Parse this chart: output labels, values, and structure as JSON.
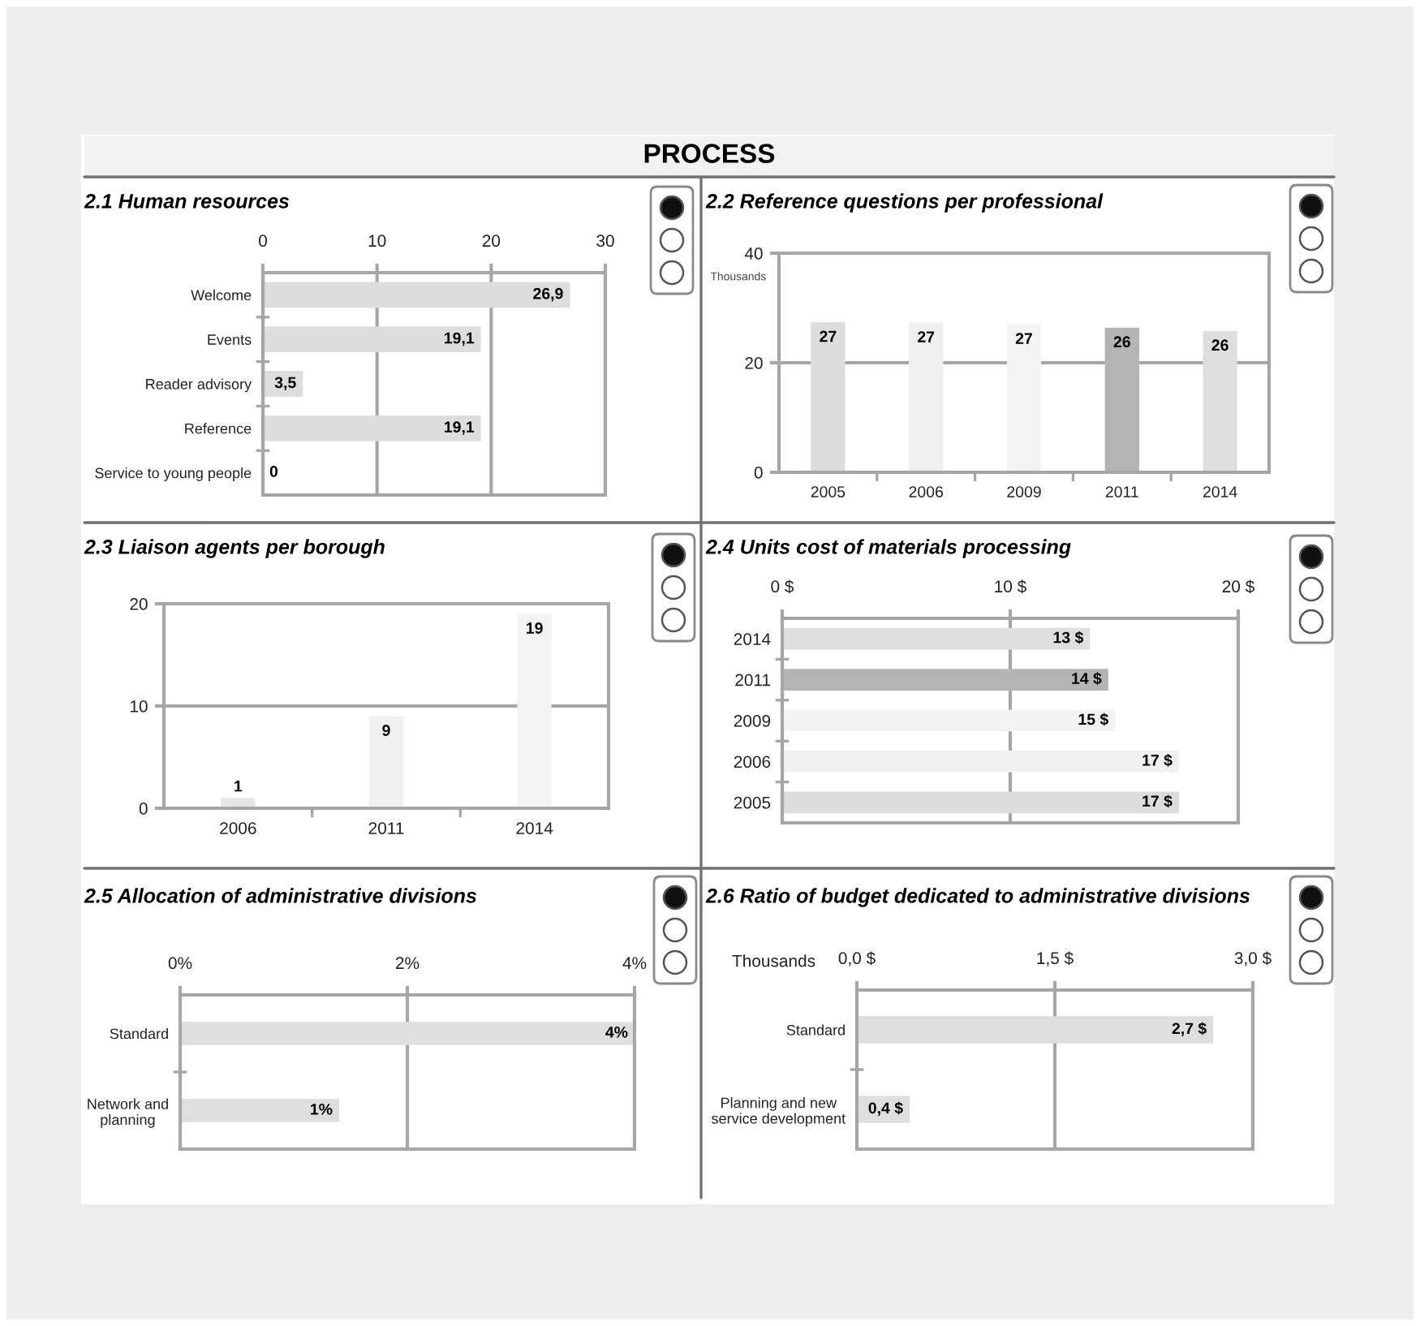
{
  "chart_data": [
    {
      "type": "other",
      "title": "PROCESS"
    },
    {
      "type": "bar",
      "orientation": "horizontal",
      "title": "2.1 Human resources",
      "categories": [
        "Welcome",
        "Events",
        "Reader advisory",
        "Reference",
        "Service to young people"
      ],
      "values": [
        26.9,
        19.1,
        3.5,
        19.1,
        0
      ],
      "value_labels": [
        "26,9",
        "19,1",
        "3,5",
        "19,1",
        "0"
      ],
      "color": "#dddddd",
      "xlim": [
        0,
        30
      ],
      "xticks": [
        0,
        10,
        20,
        30
      ],
      "grid": "x"
    },
    {
      "type": "bar",
      "title": "2.2 Reference questions per professional",
      "ylabel": "Thousands",
      "categories": [
        "2005",
        "2006",
        "2009",
        "2011",
        "2014"
      ],
      "values": [
        27.4,
        27.3,
        27,
        26.4,
        25.8
      ],
      "value_labels": [
        "27",
        "27",
        "27",
        "26",
        "26"
      ],
      "colors": [
        "#dcdcdc",
        "#efefef",
        "#f3f3f3",
        "#b4b4b4",
        "#dedede"
      ],
      "ylim": [
        0,
        40
      ],
      "yticks": [
        0,
        20,
        40
      ],
      "grid": "y"
    },
    {
      "type": "bar",
      "title": "2.3 Liaison agents per borough",
      "categories": [
        "2006",
        "2011",
        "2014"
      ],
      "values": [
        1,
        9,
        19
      ],
      "data_labels": true,
      "colors": [
        "#e6e6e6",
        "#efefef",
        "#f3f3f3"
      ],
      "ylim": [
        0,
        20
      ],
      "yticks": [
        0,
        10,
        20
      ],
      "grid": "y"
    },
    {
      "type": "bar",
      "orientation": "horizontal",
      "title": "2.4 Units cost of materials processing",
      "categories": [
        "2014",
        "2011",
        "2009",
        "2006",
        "2005"
      ],
      "values": [
        13.5,
        14.3,
        14.6,
        17.4,
        17.4
      ],
      "value_labels": [
        "13 $",
        "14 $",
        "15 $",
        "17 $",
        "17 $"
      ],
      "colors": [
        "#dedede",
        "#b4b4b4",
        "#f3f3f3",
        "#f0f0f0",
        "#dcdcdc"
      ],
      "xlim": [
        0,
        20
      ],
      "xticks": [
        {
          "value": 0,
          "label": "0 $"
        },
        {
          "value": 10,
          "label": "10 $"
        },
        {
          "value": 20,
          "label": "20 $"
        }
      ],
      "grid": "x"
    },
    {
      "type": "bar",
      "orientation": "horizontal",
      "title": "2.5 Allocation of administrative divisions",
      "categories": [
        "Standard",
        "Network and planning"
      ],
      "values": [
        4,
        1.4
      ],
      "value_labels": [
        "4%",
        "1%"
      ],
      "color": "#dedede",
      "xlim": [
        0,
        4
      ],
      "xticks": [
        {
          "value": 0,
          "label": "0%"
        },
        {
          "value": 2,
          "label": "2%"
        },
        {
          "value": 4,
          "label": "4%"
        }
      ],
      "grid": "x"
    },
    {
      "type": "bar",
      "orientation": "horizontal",
      "title": "2.6 Ratio of budget dedicated to administrative divisions",
      "xlabel": "Thousands",
      "categories": [
        "Standard",
        "Planning and new service development"
      ],
      "values": [
        2.7,
        0.4
      ],
      "value_labels": [
        "2,7 $",
        "0,4 $"
      ],
      "color": "#dedede",
      "xlim": [
        0,
        3
      ],
      "xticks": [
        {
          "value": 0,
          "label": "0,0 $"
        },
        {
          "value": 1.5,
          "label": "1,5 $"
        },
        {
          "value": 3,
          "label": "3,0 $"
        }
      ],
      "grid": "x"
    }
  ]
}
